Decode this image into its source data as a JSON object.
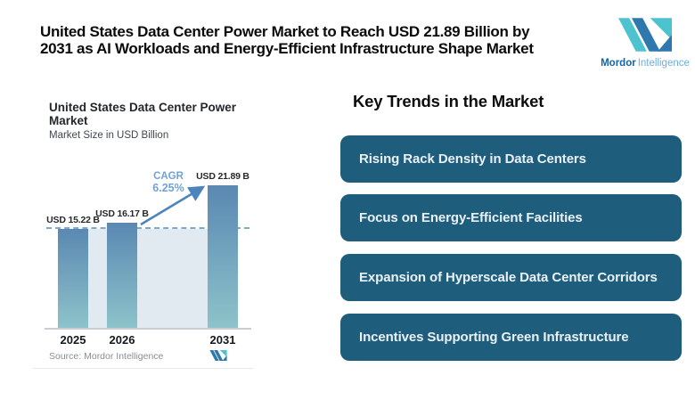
{
  "header": {
    "line1": "United States Data Center Power Market to Reach USD 21.89 Billion by",
    "line2": "2031 as AI Workloads and Energy-Efficient Infrastructure Shape Market"
  },
  "brand": {
    "name_bold": "Mordor",
    "name_light": "Intelligence"
  },
  "chart": {
    "title": "United States Data Center Power Market",
    "subtitle": "Market Size in USD Billion",
    "cagr_label": "CAGR",
    "cagr_value": "6.25%",
    "source": "Source: Mordor Intelligence"
  },
  "chart_data": {
    "type": "bar",
    "title": "United States Data Center Power Market",
    "subtitle": "Market Size in USD Billion",
    "categories": [
      "2025",
      "2026",
      "2031"
    ],
    "values": [
      15.22,
      16.17,
      21.89
    ],
    "value_labels": [
      "USD 15.22 B",
      "USD 16.17 B",
      "USD 21.89 B"
    ],
    "cagr": "6.25%",
    "cagr_annotation": "CAGR 6.25% arrow from 2026 bar top to 2031 bar top",
    "reference_level": 15.22,
    "reference_line_style": "dashed",
    "ylim": [
      0,
      24
    ],
    "grid": false,
    "legend": false,
    "source": "Source: Mordor Intelligence"
  },
  "trends": {
    "heading": "Key Trends in the Market",
    "items": [
      "Rising Rack Density in Data Centers",
      "Focus on Energy-Efficient Facilities",
      "Expansion of Hyperscale Data Center Corridors",
      "Incentives Supporting Green Infrastructure"
    ]
  },
  "colors": {
    "accent_card": "#1f5d7c",
    "bar_top": "#5a88b2",
    "bar_bottom": "#8dc3ca",
    "band": "#e2eaf1",
    "dashed": "#7fa8ce",
    "arrow": "#4c84be",
    "cagr": "#6fa3d6",
    "logo_teal": "#4ec3d0",
    "logo_blue": "#2e78ad"
  }
}
